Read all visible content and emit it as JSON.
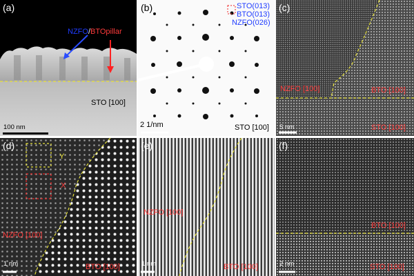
{
  "panels": {
    "a": {
      "label": "(a)",
      "nzfo": "NZFO",
      "slash": "/",
      "bto_pillar": "BTOpillar",
      "substrate": "STO [100]",
      "scalebar": "100 nm"
    },
    "b": {
      "label": "(b)",
      "legend": [
        "STO(013)",
        "BTO(013)",
        "NZFO(026)"
      ],
      "scalebar": "2 1/nm",
      "zone": "STO [100]"
    },
    "c": {
      "label": "(c)",
      "left": "NZFO [100]",
      "right": "BTO [100]",
      "bottom": "STO [100]",
      "scalebar": "5 nm"
    },
    "d": {
      "label": "(d)",
      "box_y": "Y",
      "box_x": "X",
      "left": "NZFO [100]",
      "right": "BTO [100]",
      "scalebar": "1 nm"
    },
    "e": {
      "label": "(e)",
      "left": "NZFO [100]",
      "right": "BTO [100]",
      "scalebar": "1 nm"
    },
    "f": {
      "label": "(f)",
      "top": "BTO [100]",
      "bottom": "STO [100]",
      "scalebar": "2 nm"
    }
  },
  "colors": {
    "interface": "#e8e23a",
    "red_label": "#ff3b3b",
    "blue_label": "#1f3cff"
  }
}
